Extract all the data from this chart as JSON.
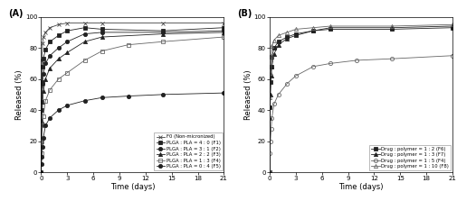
{
  "A": {
    "title": "(A)",
    "xlabel": "Time (days)",
    "ylabel": "Released (%)",
    "xlim": [
      0,
      21
    ],
    "ylim": [
      0,
      100
    ],
    "xticks": [
      0,
      3,
      6,
      9,
      12,
      15,
      18,
      21
    ],
    "yticks": [
      0,
      20,
      40,
      60,
      80,
      100
    ],
    "series": [
      {
        "label": "F0 (Non-micronized)",
        "marker": "x",
        "color": "#444444",
        "linestyle": "-",
        "markersize": 3.0,
        "fillstyle": "none",
        "time": [
          0,
          0.04,
          0.08,
          0.17,
          0.25,
          0.5,
          1,
          2,
          3,
          5,
          7,
          14,
          21
        ],
        "release": [
          0,
          55,
          72,
          83,
          87,
          90,
          93,
          95,
          96,
          96,
          96,
          96,
          96
        ]
      },
      {
        "label": "PLGA : PLA = 4 : 0 (F1)",
        "marker": "s",
        "color": "#222222",
        "linestyle": "-",
        "markersize": 3.0,
        "fillstyle": "full",
        "time": [
          0,
          0.04,
          0.08,
          0.17,
          0.25,
          0.5,
          1,
          2,
          3,
          5,
          7,
          14,
          21
        ],
        "release": [
          0,
          40,
          58,
          68,
          73,
          79,
          84,
          88,
          91,
          93,
          92,
          91,
          93
        ]
      },
      {
        "label": "PLGA : PLA = 3 : 1 (F2)",
        "marker": "o",
        "color": "#222222",
        "linestyle": "-",
        "markersize": 3.0,
        "fillstyle": "full",
        "time": [
          0,
          0.04,
          0.08,
          0.17,
          0.25,
          0.5,
          1,
          2,
          3,
          5,
          7,
          14,
          21
        ],
        "release": [
          0,
          30,
          45,
          57,
          63,
          70,
          75,
          80,
          84,
          89,
          90,
          90,
          91
        ]
      },
      {
        "label": "PLGA : PLA = 2 : 2 (F3)",
        "marker": "^",
        "color": "#222222",
        "linestyle": "-",
        "markersize": 3.0,
        "fillstyle": "full",
        "time": [
          0,
          0.04,
          0.08,
          0.17,
          0.25,
          0.5,
          1,
          2,
          3,
          5,
          7,
          14,
          21
        ],
        "release": [
          0,
          22,
          33,
          45,
          52,
          60,
          67,
          73,
          77,
          84,
          87,
          89,
          90
        ]
      },
      {
        "label": "PLGA : PLA = 1 : 3 (F4)",
        "marker": "s",
        "color": "#666666",
        "linestyle": "-",
        "markersize": 3.0,
        "fillstyle": "none",
        "time": [
          0,
          0.04,
          0.08,
          0.17,
          0.25,
          0.5,
          1,
          2,
          3,
          5,
          7,
          10,
          14,
          21
        ],
        "release": [
          0,
          12,
          20,
          30,
          36,
          46,
          53,
          60,
          64,
          72,
          78,
          82,
          84,
          87
        ]
      },
      {
        "label": "PLGA : PLA = 0 : 4 (F5)",
        "marker": "o",
        "color": "#222222",
        "linestyle": "-",
        "markersize": 3.0,
        "fillstyle": "full",
        "time": [
          0,
          0.04,
          0.08,
          0.17,
          0.25,
          0.5,
          1,
          2,
          3,
          5,
          7,
          10,
          14,
          21
        ],
        "release": [
          0,
          5,
          10,
          16,
          22,
          30,
          35,
          40,
          43,
          46,
          48,
          49,
          50,
          51
        ]
      }
    ],
    "legend_loc": "lower right",
    "legend_bbox": null
  },
  "B": {
    "title": "(B)",
    "xlabel": "Time (days)",
    "ylabel": "Released (%)",
    "xlim": [
      0,
      21
    ],
    "ylim": [
      0,
      100
    ],
    "xticks": [
      0,
      3,
      6,
      9,
      12,
      15,
      18,
      21
    ],
    "yticks": [
      0,
      20,
      40,
      60,
      80,
      100
    ],
    "series": [
      {
        "label": "Drug : polymer = 1 : 2 (F6)",
        "marker": "s",
        "color": "#222222",
        "linestyle": "-",
        "markersize": 3.0,
        "fillstyle": "full",
        "time": [
          0,
          0.04,
          0.08,
          0.17,
          0.25,
          0.5,
          1,
          2,
          3,
          5,
          7,
          14,
          21
        ],
        "release": [
          0,
          42,
          58,
          68,
          74,
          80,
          84,
          87,
          89,
          91,
          92,
          92,
          93
        ]
      },
      {
        "label": "Drug : polymer = 1 : 3 (F7)",
        "marker": "^",
        "color": "#222222",
        "linestyle": "-",
        "markersize": 3.0,
        "fillstyle": "full",
        "time": [
          0,
          0.04,
          0.08,
          0.17,
          0.25,
          0.5,
          1,
          2,
          3,
          5,
          7,
          14,
          21
        ],
        "release": [
          0,
          35,
          50,
          62,
          68,
          76,
          82,
          86,
          88,
          91,
          93,
          93,
          94
        ]
      },
      {
        "label": "Drug : polymer = 1 : 5 (F4)",
        "marker": "o",
        "color": "#666666",
        "linestyle": "-",
        "markersize": 3.0,
        "fillstyle": "none",
        "time": [
          0,
          0.04,
          0.08,
          0.17,
          0.25,
          0.5,
          1,
          2,
          3,
          5,
          7,
          10,
          14,
          21
        ],
        "release": [
          0,
          12,
          20,
          28,
          35,
          44,
          50,
          57,
          62,
          68,
          70,
          72,
          73,
          75
        ]
      },
      {
        "label": "Drug : polymer = 1 : 10 (F8)",
        "marker": "^",
        "color": "#666666",
        "linestyle": "-",
        "markersize": 3.0,
        "fillstyle": "none",
        "time": [
          0,
          0.04,
          0.08,
          0.17,
          0.25,
          0.5,
          1,
          2,
          3,
          5,
          7,
          14,
          21
        ],
        "release": [
          0,
          48,
          64,
          75,
          81,
          85,
          88,
          90,
          92,
          93,
          94,
          94,
          95
        ]
      }
    ],
    "legend_loc": "lower right",
    "legend_bbox": null
  }
}
